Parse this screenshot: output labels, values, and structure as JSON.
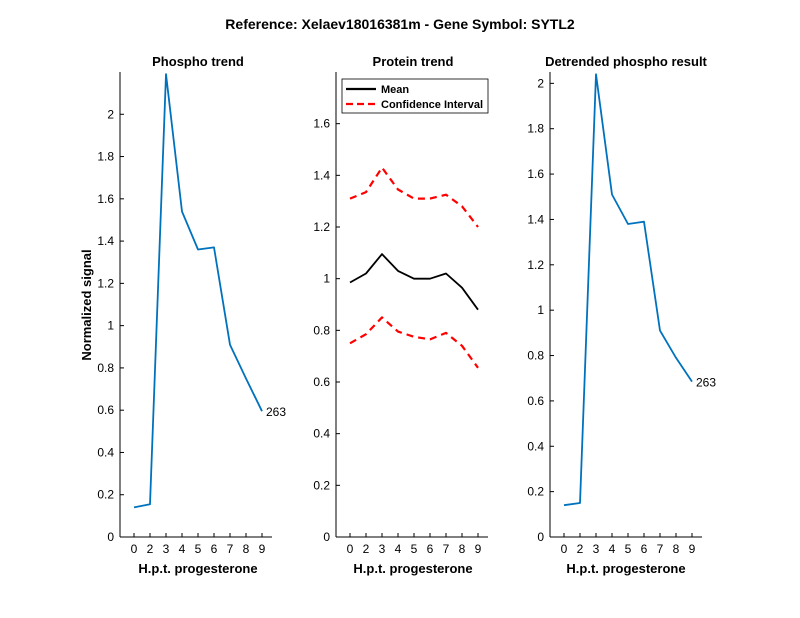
{
  "figure": {
    "suptitle": "Reference:  Xelaev18016381m - Gene Symbol:  SYTL2"
  },
  "chart_data": [
    {
      "type": "line",
      "title": "Phospho trend",
      "xlabel": "H.p.t. progesterone",
      "ylabel": "Normalized signal",
      "x_ticks": [
        "0",
        "2",
        "3",
        "4",
        "5",
        "6",
        "7",
        "8",
        "9"
      ],
      "y_ticks": [
        "0",
        "0.2",
        "0.4",
        "0.6",
        "0.8",
        "1",
        "1.2",
        "1.4",
        "1.6",
        "1.8",
        "2"
      ],
      "ylim": [
        0,
        2.2
      ],
      "series": [
        {
          "color": "#0072BD",
          "style": "solid",
          "values": [
            0.14,
            0.155,
            2.19,
            1.54,
            1.36,
            1.37,
            0.91,
            0.75,
            0.595
          ]
        }
      ],
      "annotation": "263"
    },
    {
      "type": "line",
      "title": "Protein trend",
      "xlabel": "H.p.t. progesterone",
      "ylabel": "",
      "x_ticks": [
        "0",
        "2",
        "3",
        "4",
        "5",
        "6",
        "7",
        "8",
        "9"
      ],
      "y_ticks": [
        "0",
        "0.2",
        "0.4",
        "0.6",
        "0.8",
        "1",
        "1.2",
        "1.4",
        "1.6"
      ],
      "ylim": [
        0,
        1.8
      ],
      "legend": {
        "position": "top-left"
      },
      "series": [
        {
          "name": "Mean",
          "color": "#000000",
          "style": "solid",
          "values": [
            0.985,
            1.02,
            1.095,
            1.03,
            1.0,
            1.0,
            1.02,
            0.965,
            0.88
          ]
        },
        {
          "name": "Confidence Interval",
          "color": "#FF0000",
          "style": "dashed",
          "values": [
            1.31,
            1.335,
            1.43,
            1.345,
            1.31,
            1.31,
            1.325,
            1.28,
            1.2
          ]
        },
        {
          "color": "#FF0000",
          "style": "dashed",
          "values": [
            0.75,
            0.785,
            0.85,
            0.795,
            0.775,
            0.765,
            0.79,
            0.74,
            0.655
          ]
        }
      ]
    },
    {
      "type": "line",
      "title": "Detrended phospho result",
      "xlabel": "H.p.t. progesterone",
      "ylabel": "",
      "x_ticks": [
        "0",
        "2",
        "3",
        "4",
        "5",
        "6",
        "7",
        "8",
        "9"
      ],
      "y_ticks": [
        "0",
        "0.2",
        "0.4",
        "0.6",
        "0.8",
        "1",
        "1.2",
        "1.4",
        "1.6",
        "1.8",
        "2"
      ],
      "ylim": [
        0,
        2.05
      ],
      "series": [
        {
          "color": "#0072BD",
          "style": "solid",
          "values": [
            0.14,
            0.15,
            2.04,
            1.51,
            1.38,
            1.39,
            0.91,
            0.79,
            0.685
          ]
        }
      ],
      "annotation": "263"
    }
  ]
}
